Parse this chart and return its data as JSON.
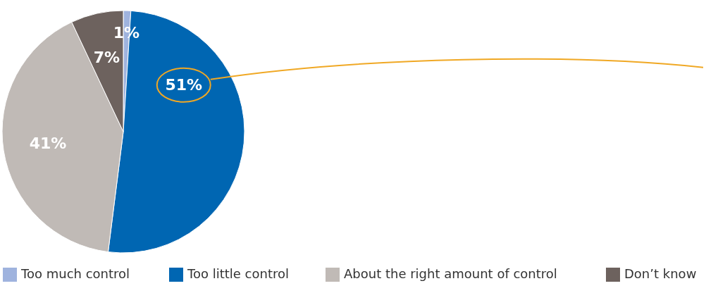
{
  "chart_data": {
    "type": "pie",
    "categories": [
      "Too much control",
      "Too little control",
      "About the right amount of control",
      "Don’t know"
    ],
    "values": [
      1,
      51,
      41,
      7
    ],
    "value_labels": [
      "1%",
      "51%",
      "41%",
      "7%"
    ],
    "colors": [
      "#9fb3de",
      "#0066b2",
      "#c0bab6",
      "#6d625e"
    ],
    "legend": "bottom"
  }
}
